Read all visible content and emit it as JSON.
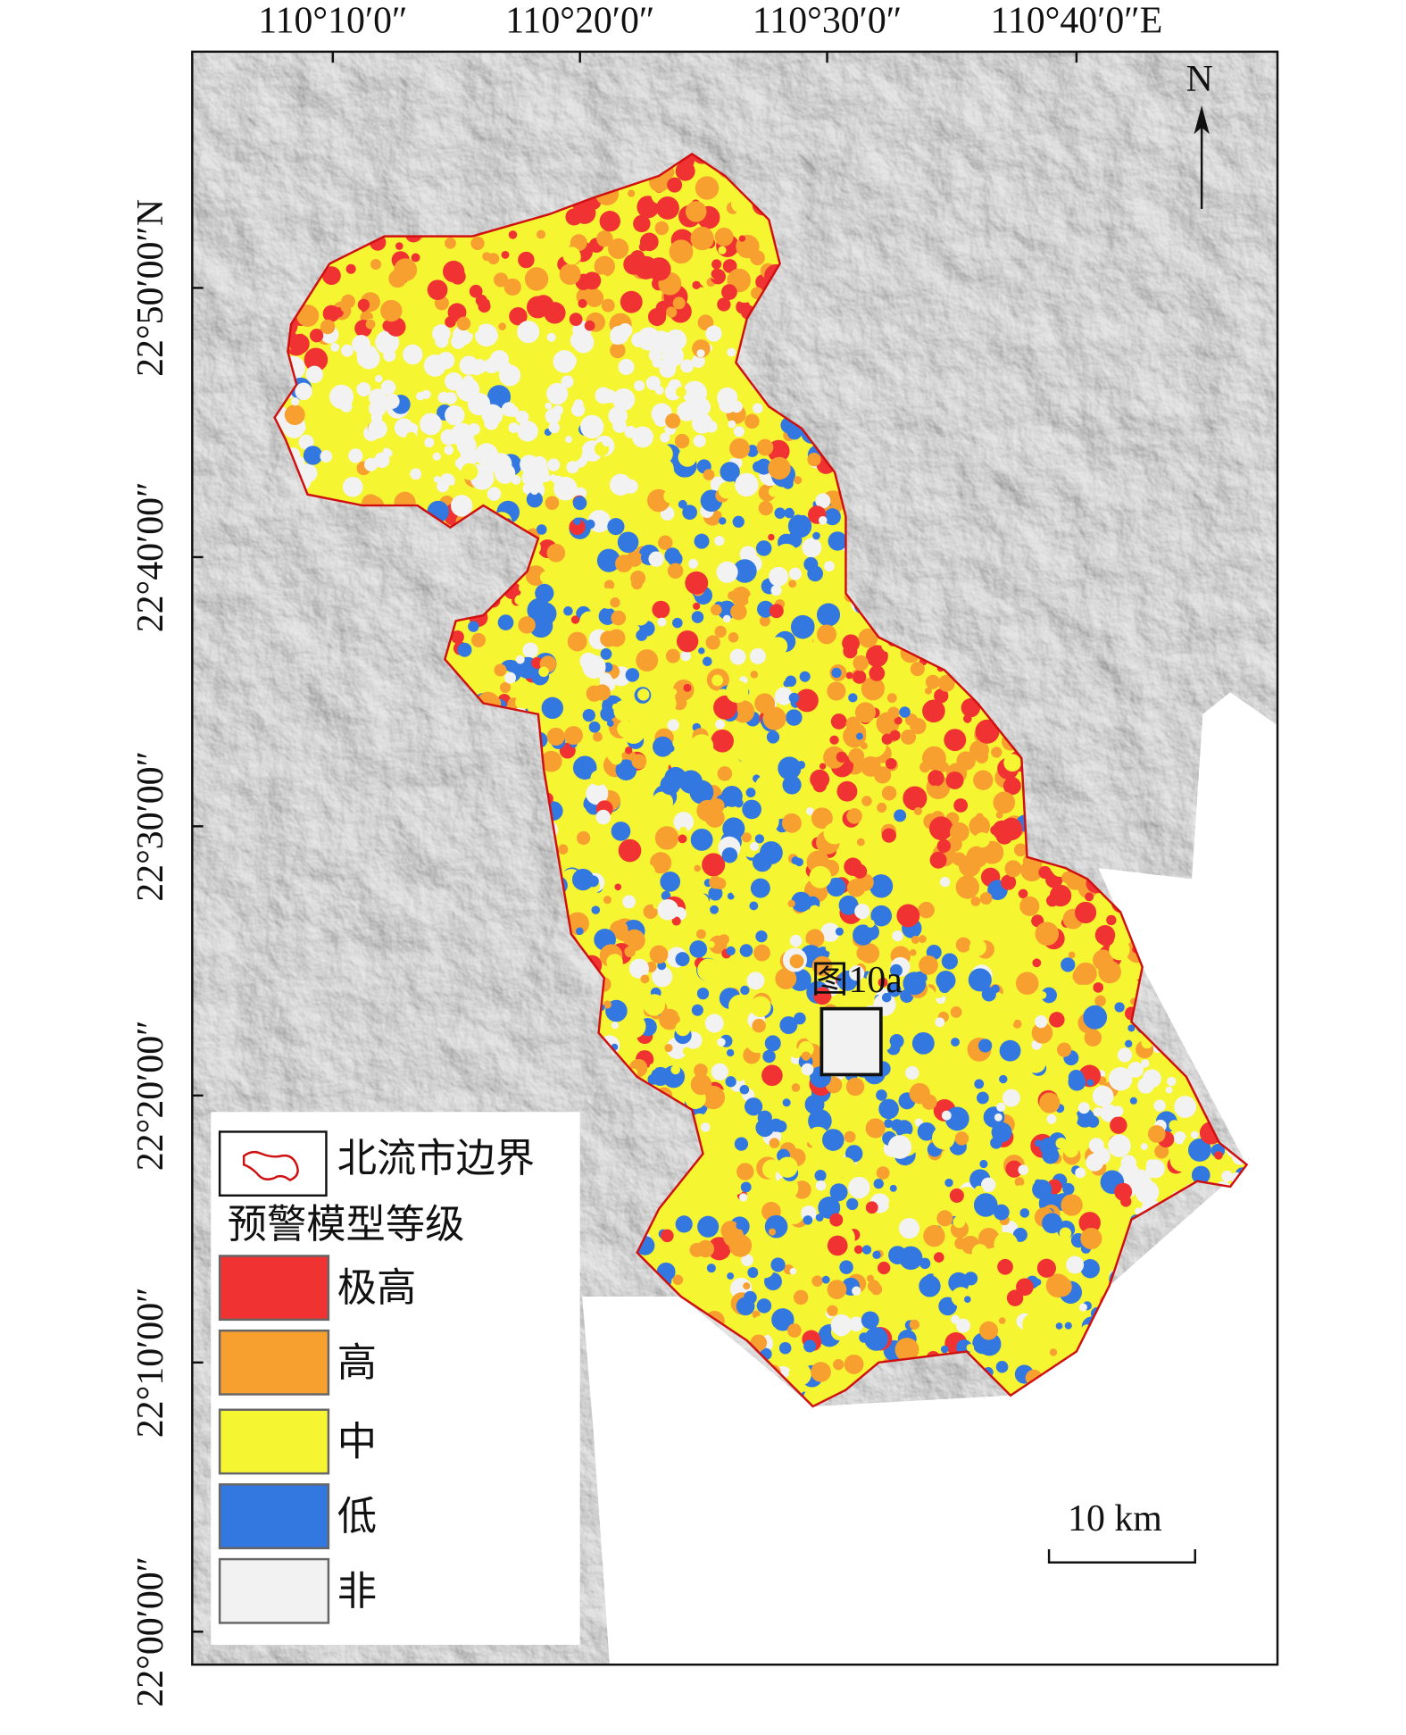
{
  "axes": {
    "top_labels": [
      "110°10′0″",
      "110°20′0″",
      "110°30′0″",
      "110°40′0″E"
    ],
    "left_labels": [
      "22°50′00″N",
      "22°40′00″",
      "22°30′00″",
      "22°20′00″",
      "22°10′00″",
      "22°00′00″"
    ]
  },
  "north": {
    "label": "N"
  },
  "inset": {
    "label": "图10a"
  },
  "scale_bar": {
    "label": "10 km"
  },
  "legend": {
    "boundary": "北流市边界",
    "title": "预警模型等级",
    "classes": [
      {
        "label": "极高",
        "color": "#f03232"
      },
      {
        "label": "高",
        "color": "#f7a030"
      },
      {
        "label": "中",
        "color": "#f5f532"
      },
      {
        "label": "低",
        "color": "#3377e0"
      },
      {
        "label": "非",
        "color": "#f2f2f2"
      }
    ]
  }
}
